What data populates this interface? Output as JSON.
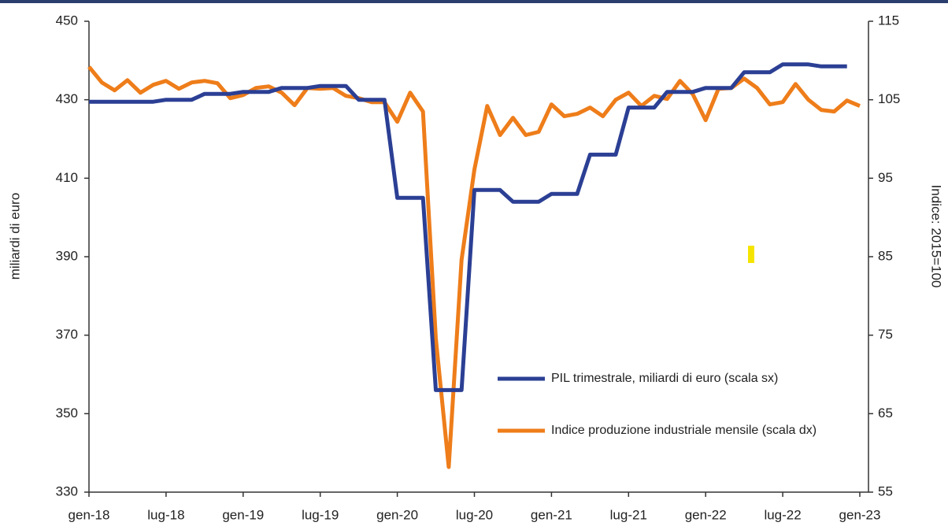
{
  "chart_data": {
    "type": "line",
    "categories": [
      "gen-18",
      null,
      null,
      null,
      null,
      null,
      "lug-18",
      null,
      null,
      null,
      null,
      null,
      "gen-19",
      null,
      null,
      null,
      null,
      null,
      "lug-19",
      null,
      null,
      null,
      null,
      null,
      "gen-20",
      null,
      null,
      null,
      null,
      null,
      "lug-20",
      null,
      null,
      null,
      null,
      null,
      "gen-21",
      null,
      null,
      null,
      null,
      null,
      "lug-21",
      null,
      null,
      null,
      null,
      null,
      "gen-22",
      null,
      null,
      null,
      null,
      null,
      "lug-22",
      null,
      null,
      null,
      null,
      null,
      "gen-23"
    ],
    "series": [
      {
        "name": "PIL trimestrale, miliardi di euro (scala sx)",
        "color": "#2b3f94",
        "axis": "y",
        "values": [
          429.5,
          429.5,
          429.5,
          429.5,
          429.5,
          429.5,
          430,
          430,
          430,
          431.5,
          431.5,
          431.5,
          432,
          432,
          432,
          433,
          433,
          433,
          433.5,
          433.5,
          433.5,
          430,
          430,
          430,
          405,
          405,
          405,
          356,
          356,
          356,
          407,
          407,
          407,
          404,
          404,
          404,
          406,
          406,
          406,
          416,
          416,
          416,
          428,
          428,
          428,
          432,
          432,
          432,
          433,
          433,
          433,
          437,
          437,
          437,
          439,
          439,
          439,
          438.5,
          438.5,
          438.5,
          null
        ]
      },
      {
        "name": "Indice produzione industriale mensile (scala dx)",
        "color": "#ee7d1a",
        "axis": "y2",
        "values": [
          109.2,
          107.2,
          106.2,
          107.5,
          105.9,
          106.9,
          107.4,
          106.4,
          107.2,
          107.4,
          107.1,
          105.2,
          105.6,
          106.5,
          106.7,
          105.9,
          104.3,
          106.5,
          106.4,
          106.5,
          105.5,
          105.2,
          104.7,
          104.7,
          102.2,
          105.9,
          103.5,
          74.6,
          58.2,
          84.6,
          96.1,
          104.2,
          100.5,
          102.7,
          100.5,
          100.9,
          104.4,
          102.9,
          103.2,
          104.0,
          102.9,
          105.0,
          105.9,
          104.2,
          105.5,
          105.1,
          107.4,
          105.7,
          102.4,
          106.4,
          106.5,
          107.7,
          106.5,
          104.4,
          104.7,
          107.0,
          105.0,
          103.7,
          103.5,
          104.9,
          104.2
        ]
      }
    ],
    "ylabel": "miliardi di euro",
    "y2label": "Indice: 2015=100",
    "ylim": [
      330,
      450
    ],
    "yticks": [
      330,
      350,
      370,
      390,
      410,
      430,
      450
    ],
    "y2lim": [
      55,
      115
    ],
    "y2ticks": [
      55,
      65,
      75,
      85,
      95,
      105,
      115
    ]
  }
}
